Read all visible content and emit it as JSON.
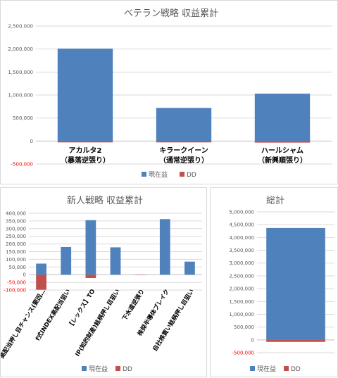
{
  "colors": {
    "current": "#4f81bd",
    "dd": "#c0504d",
    "grid": "#d9d9d9",
    "axis_text": "#595959",
    "neg_text": "#ff0000"
  },
  "chart_data": [
    {
      "type": "bar",
      "title": "ベテラン戦略 収益累計",
      "categories": [
        [
          "アカルタ2",
          "（暴落逆張り）"
        ],
        [
          "キラークイーン",
          "（通常逆張り）"
        ],
        [
          "ハールシャム",
          "（新興順張り）"
        ]
      ],
      "series": [
        {
          "name": "現在益",
          "values": [
            2010000,
            720000,
            1030000
          ]
        },
        {
          "name": "DD",
          "values": [
            -30000,
            -30000,
            -35000
          ]
        }
      ],
      "ylim": [
        -500000,
        2500000
      ],
      "yticks": [
        "-500,000",
        "0",
        "500,000",
        "1,000,000",
        "1,500,000",
        "2,000,000",
        "2,500,000"
      ],
      "grid": true,
      "legend": "bottom"
    },
    {
      "type": "bar",
      "title": "新人戦略 収益累計",
      "categories": [
        "高配当押し目チャンス(要因…",
        "f式INDEX高配当狙い",
        "【レックス】TO",
        "IP(知的財産)銘柄押し目狙い",
        "下水道逆張り",
        "株探半導体ブレイク",
        "自社株買い銘柄押し目狙い"
      ],
      "series": [
        {
          "name": "現在益",
          "values": [
            72000,
            180000,
            355000,
            178000,
            0,
            362000,
            85000
          ]
        },
        {
          "name": "DD",
          "values": [
            -98000,
            0,
            -22000,
            0,
            -2000,
            0,
            0
          ]
        }
      ],
      "ylim": [
        -100000,
        400000
      ],
      "yticks": [
        "-100,000",
        "-50,000",
        "0",
        "50,000",
        "100,000",
        "150,000",
        "200,000",
        "250,000",
        "300,000",
        "350,000",
        "400,000"
      ],
      "grid": true,
      "legend": "bottom"
    },
    {
      "type": "bar",
      "title": "総計",
      "categories": [
        ""
      ],
      "series": [
        {
          "name": "現在益",
          "values": [
            4370000
          ]
        },
        {
          "name": "DD",
          "values": [
            -80000
          ]
        }
      ],
      "ylim": [
        -500000,
        5000000
      ],
      "yticks": [
        "-500,000",
        "0",
        "500,000",
        "1,000,000",
        "1,500,000",
        "2,000,000",
        "2,500,000",
        "3,000,000",
        "3,500,000",
        "4,000,000",
        "4,500,000",
        "5,000,000"
      ],
      "grid": true,
      "legend": "bottom"
    }
  ]
}
